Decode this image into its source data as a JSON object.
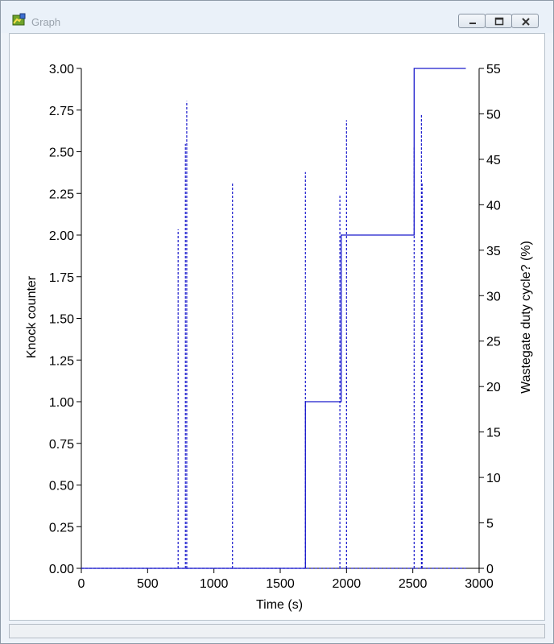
{
  "window": {
    "title": "Graph",
    "app_icon": "graph-app-icon",
    "buttons": [
      {
        "name": "minimize-button",
        "icon": "minimize-icon"
      },
      {
        "name": "restore-button",
        "icon": "restore-icon"
      },
      {
        "name": "close-button",
        "icon": "close-icon"
      }
    ]
  },
  "chart_data": {
    "type": "line",
    "xlabel": "Time (s)",
    "ylabel_left": "Knock counter",
    "ylabel_right": "Wastegate duty cycle? (%)",
    "xlim": [
      0,
      3000
    ],
    "ylim_left": [
      0,
      3
    ],
    "ylim_right": [
      0,
      55
    ],
    "x_ticks": [
      0,
      500,
      1000,
      1500,
      2000,
      2500,
      3000
    ],
    "y_left_ticks": [
      "0.00",
      "0.25",
      "0.50",
      "0.75",
      "1.00",
      "1.25",
      "1.50",
      "1.75",
      "2.00",
      "2.25",
      "2.50",
      "2.75",
      "3.00"
    ],
    "y_right_ticks": [
      0,
      5,
      10,
      15,
      20,
      25,
      30,
      35,
      40,
      45,
      50,
      55
    ],
    "line_color": "#1a1acc",
    "grid": false,
    "series": [
      {
        "axis": "left",
        "style": "solid",
        "x": [
          0,
          1690,
          1690,
          1960,
          1960,
          2510,
          2510,
          2900
        ],
        "y": [
          0,
          0,
          1,
          1,
          2,
          2,
          3,
          3
        ]
      },
      {
        "axis": "right",
        "style": "dashed",
        "spikes": [
          {
            "x": 730,
            "y": 37.3
          },
          {
            "x": 785,
            "y": 46.7
          },
          {
            "x": 795,
            "y": 51.4
          },
          {
            "x": 1140,
            "y": 42.4
          },
          {
            "x": 1690,
            "y": 43.6
          },
          {
            "x": 1950,
            "y": 41
          },
          {
            "x": 2000,
            "y": 49.3
          },
          {
            "x": 2510,
            "y": 46.3
          },
          {
            "x": 2565,
            "y": 50
          },
          {
            "x": 2570,
            "y": 42.5
          }
        ],
        "baseline": 0,
        "x_end": 2900
      }
    ]
  }
}
